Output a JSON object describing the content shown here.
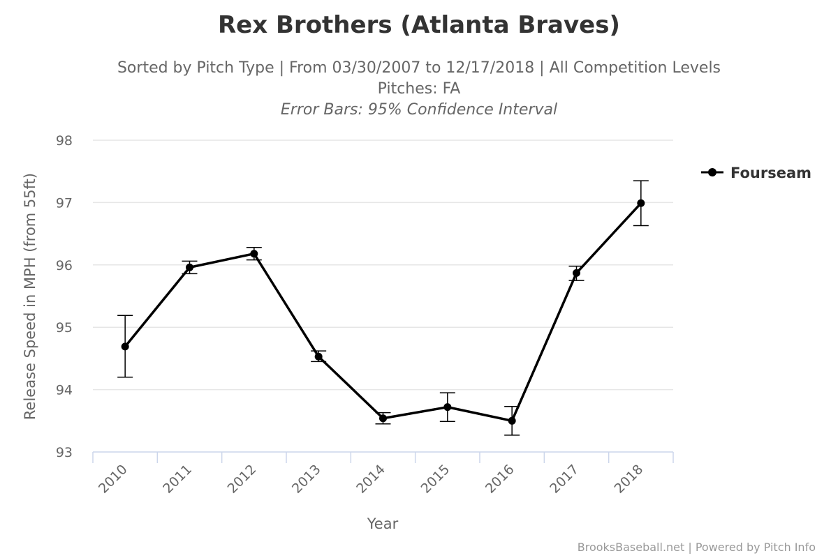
{
  "chart_data": {
    "type": "line",
    "title": "Rex Brothers (Atlanta Braves)",
    "subtitle": [
      "Sorted by Pitch Type | From 03/30/2007 to 12/17/2018 | All Competition Levels",
      "Pitches: FA",
      "Error Bars: 95% Confidence Interval"
    ],
    "xlabel": "Year",
    "ylabel": "Release Speed in MPH (from 55ft)",
    "categories": [
      "2010",
      "2011",
      "2012",
      "2013",
      "2014",
      "2015",
      "2016",
      "2017",
      "2018"
    ],
    "ylim": [
      93,
      98
    ],
    "yticks": [
      "93",
      "94",
      "95",
      "96",
      "97",
      "98"
    ],
    "grid": true,
    "legend_position": "top-right",
    "series": [
      {
        "name": "Fourseam",
        "color": "#000000",
        "values": [
          94.69,
          95.96,
          96.18,
          94.53,
          93.54,
          93.72,
          93.5,
          95.87,
          96.99
        ],
        "error_low": [
          94.2,
          95.86,
          96.08,
          94.45,
          93.45,
          93.49,
          93.27,
          95.75,
          96.63
        ],
        "error_high": [
          95.19,
          96.06,
          96.28,
          94.62,
          93.63,
          93.95,
          93.73,
          95.98,
          97.35
        ]
      }
    ]
  },
  "credits": "BrooksBaseball.net | Powered by Pitch Info",
  "colors": {
    "gridline": "#e6e6e6",
    "axis_line": "#ccd6eb",
    "series": "#000000"
  }
}
